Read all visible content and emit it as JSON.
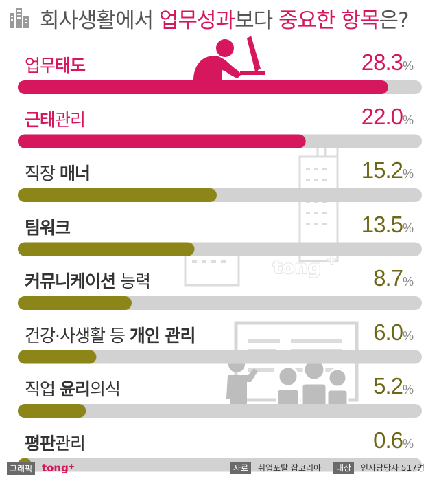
{
  "title": {
    "part1": "회사생활에서 ",
    "part2": "업무성과",
    "part3": "보다 ",
    "part4": "중요한 항목",
    "part5": "은?"
  },
  "colors": {
    "accent": "#d6175d",
    "olive": "#8c8518",
    "track": "#d2d2d2",
    "title_gray": "#555555"
  },
  "chart_data": {
    "type": "bar",
    "orientation": "horizontal",
    "unit": "%",
    "xlim": [
      0,
      30
    ],
    "categories": [
      "업무태도",
      "근태관리",
      "직장 매너",
      "팀워크",
      "커뮤니케이션 능력",
      "건강·사생활 등 개인 관리",
      "직업 윤리의식",
      "평판관리"
    ],
    "values": [
      28.3,
      22.0,
      15.2,
      13.5,
      8.7,
      6.0,
      5.2,
      0.6
    ],
    "value_labels": [
      {
        "int": "28",
        "dec": ".3",
        "unit": "%"
      },
      {
        "int": "22",
        "dec": ".0",
        "unit": "%"
      },
      {
        "int": "15",
        "dec": ".2",
        "unit": "%"
      },
      {
        "int": "13",
        "dec": ".5",
        "unit": "%"
      },
      {
        "int": "8",
        "dec": ".7",
        "unit": "%"
      },
      {
        "int": "6",
        "dec": ".0",
        "unit": "%"
      },
      {
        "int": "5",
        "dec": ".2",
        "unit": "%"
      },
      {
        "int": "0",
        "dec": ".6",
        "unit": "%"
      }
    ],
    "label_parts": [
      [
        {
          "t": "업무",
          "b": false
        },
        {
          "t": "태도",
          "b": true
        }
      ],
      [
        {
          "t": "근태",
          "b": true
        },
        {
          "t": "관리",
          "b": false
        }
      ],
      [
        {
          "t": "직장 ",
          "b": false
        },
        {
          "t": "매너",
          "b": true
        }
      ],
      [
        {
          "t": "팀워크",
          "b": true
        }
      ],
      [
        {
          "t": "커뮤니케이션",
          "b": true
        },
        {
          "t": " 능력",
          "b": false
        }
      ],
      [
        {
          "t": "건강·사생활 등 ",
          "b": false
        },
        {
          "t": "개인 관리",
          "b": true
        }
      ],
      [
        {
          "t": "직업 ",
          "b": false
        },
        {
          "t": "윤리",
          "b": true
        },
        {
          "t": "의식",
          "b": false
        }
      ],
      [
        {
          "t": "평판",
          "b": true
        },
        {
          "t": "관리",
          "b": false
        }
      ]
    ],
    "bar_colors": [
      "#d6175d",
      "#d6175d",
      "#8c8518",
      "#8c8518",
      "#8c8518",
      "#8c8518",
      "#8c8518",
      "#8c8518"
    ],
    "label_colors": [
      "#d6175d",
      "#d6175d",
      "#333333",
      "#333333",
      "#333333",
      "#333333",
      "#333333",
      "#333333"
    ],
    "value_colors": [
      "#d6175d",
      "#d6175d",
      "#6e6816",
      "#6e6816",
      "#6e6816",
      "#6e6816",
      "#6e6816",
      "#6e6816"
    ],
    "grid": false,
    "legend": "none"
  },
  "watermark": {
    "brand": "tong",
    "plus": "+"
  },
  "footer": {
    "graphic_label": "그래픽",
    "graphic_brand": "tong",
    "graphic_plus": "+",
    "source_label": "자료",
    "source_value": "취업포탈 잡코리아",
    "target_label": "대상",
    "target_value": "인사담당자 517명"
  }
}
